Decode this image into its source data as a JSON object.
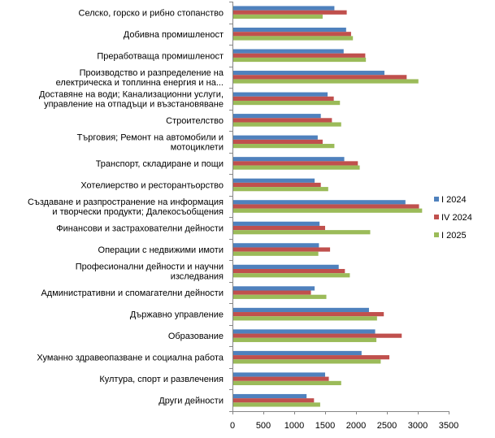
{
  "chart_data": {
    "type": "bar",
    "orientation": "horizontal",
    "title": "",
    "xlabel": "",
    "ylabel": "",
    "xlim": [
      0,
      3500
    ],
    "xticks": [
      0,
      500,
      1000,
      1500,
      2000,
      2500,
      3000,
      3500
    ],
    "grid": false,
    "legend_position": "right",
    "categories": [
      [
        "Селско, горско и рибно стопанство"
      ],
      [
        "Добивна промишленост"
      ],
      [
        "Преработваща промишленост"
      ],
      [
        "Производство и разпределение на",
        "електрическа и топлинна енергия и на..."
      ],
      [
        "Доставяне на води; Канализационни услуги,",
        "управление на отпадъци и възстановяване"
      ],
      [
        "Строителство"
      ],
      [
        "Търговия; Ремонт на автомобили и",
        "мотоциклети"
      ],
      [
        "Транспорт, складиране и пощи"
      ],
      [
        "Хотелиерство и ресторантьорство"
      ],
      [
        "Създаване и разпространение на информация",
        "и творчески продукти; Далекосъобщения"
      ],
      [
        "Финансови и застрахователни дейности"
      ],
      [
        "Операции с недвижими имоти"
      ],
      [
        "Професионални дейности и научни",
        "изследвания"
      ],
      [
        "Административни и спомагателни дейности"
      ],
      [
        "Държавно управление"
      ],
      [
        "Образование"
      ],
      [
        "Хуманно здравеопазване и социална работа"
      ],
      [
        "Култура, спорт и развлечения"
      ],
      [
        "Други дейности"
      ]
    ],
    "series": [
      {
        "name": "I 2024",
        "color": "#4F81BD",
        "values": [
          1650,
          1840,
          1800,
          2460,
          1540,
          1430,
          1380,
          1810,
          1330,
          2800,
          1410,
          1400,
          1720,
          1330,
          2210,
          2310,
          2090,
          1500,
          1200
        ]
      },
      {
        "name": "IV 2024",
        "color": "#C0504D",
        "values": [
          1850,
          1920,
          2150,
          2820,
          1640,
          1610,
          1460,
          2030,
          1430,
          3020,
          1500,
          1580,
          1820,
          1270,
          2450,
          2740,
          2540,
          1560,
          1320
        ]
      },
      {
        "name": "I 2025",
        "color": "#9BBB59",
        "values": [
          1460,
          1950,
          2160,
          3010,
          1740,
          1760,
          1650,
          2060,
          1550,
          3070,
          2230,
          1390,
          1900,
          1520,
          2340,
          2330,
          2400,
          1760,
          1420
        ]
      }
    ]
  }
}
